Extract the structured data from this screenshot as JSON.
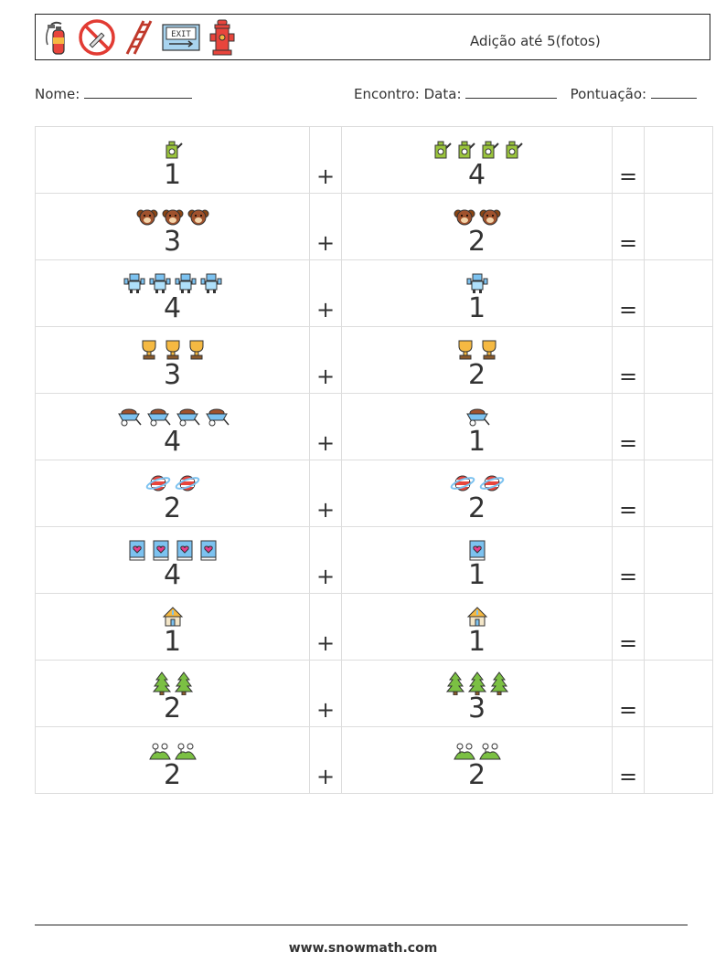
{
  "header": {
    "title": "Adição até 5(fotos)",
    "icons": [
      "fire-extinguisher-icon",
      "no-smoking-icon",
      "ladder-icon",
      "exit-sign-icon",
      "fire-hydrant-icon"
    ],
    "exit_text": "EXIT"
  },
  "info": {
    "name_label": "Nome:",
    "date_label": "Encontro: Data:",
    "score_label": "Pontuação:"
  },
  "rows": [
    {
      "a": 1,
      "b": 4,
      "icon": "watering-can-icon"
    },
    {
      "a": 3,
      "b": 2,
      "icon": "teddy-bear-icon"
    },
    {
      "a": 4,
      "b": 1,
      "icon": "robot-icon"
    },
    {
      "a": 3,
      "b": 2,
      "icon": "trophy-icon"
    },
    {
      "a": 4,
      "b": 1,
      "icon": "wheelbarrow-icon"
    },
    {
      "a": 2,
      "b": 2,
      "icon": "planet-icon"
    },
    {
      "a": 4,
      "b": 1,
      "icon": "book-icon"
    },
    {
      "a": 1,
      "b": 1,
      "icon": "house-icon"
    },
    {
      "a": 2,
      "b": 3,
      "icon": "tree-icon"
    },
    {
      "a": 2,
      "b": 2,
      "icon": "hill-icon"
    }
  ],
  "plus": "+",
  "equals": "=",
  "footer": "www.snowmath.com"
}
